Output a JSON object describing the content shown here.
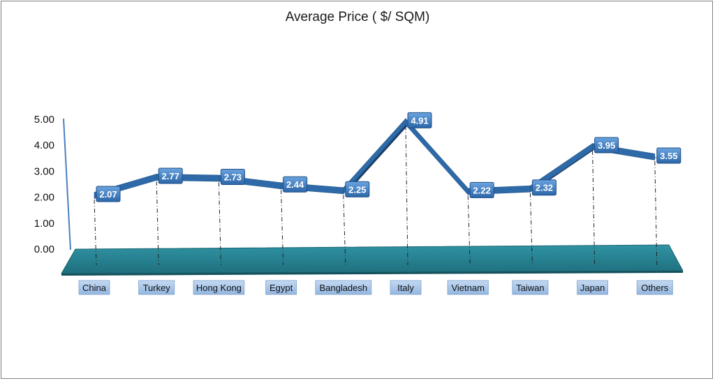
{
  "chart_data": {
    "type": "line",
    "title": "Average Price ( $/ SQM)",
    "categories": [
      "China",
      "Turkey",
      "Hong Kong",
      "Egypt",
      "Bangladesh",
      "Italy",
      "Vietnam",
      "Taiwan",
      "Japan",
      "Others"
    ],
    "values": [
      2.07,
      2.77,
      2.73,
      2.44,
      2.25,
      4.91,
      2.22,
      2.32,
      3.95,
      3.55
    ],
    "data_labels": [
      "2.07",
      "2.77",
      "2.73",
      "2.44",
      "2.25",
      "4.91",
      "2.22",
      "2.32",
      "3.95",
      "3.55"
    ],
    "y_ticks": [
      "0.00",
      "1.00",
      "2.00",
      "3.00",
      "4.00",
      "5.00"
    ],
    "ylim": [
      0,
      5
    ],
    "grid": false,
    "legend": "none",
    "colors": {
      "line": "#2e6aa8",
      "line_shadow": "#1c3f66",
      "floor": "#2a8b9b",
      "floor_dark": "#1d6a78",
      "label_box": "#3d7cc4",
      "category_box": "#a9c6e8"
    }
  }
}
